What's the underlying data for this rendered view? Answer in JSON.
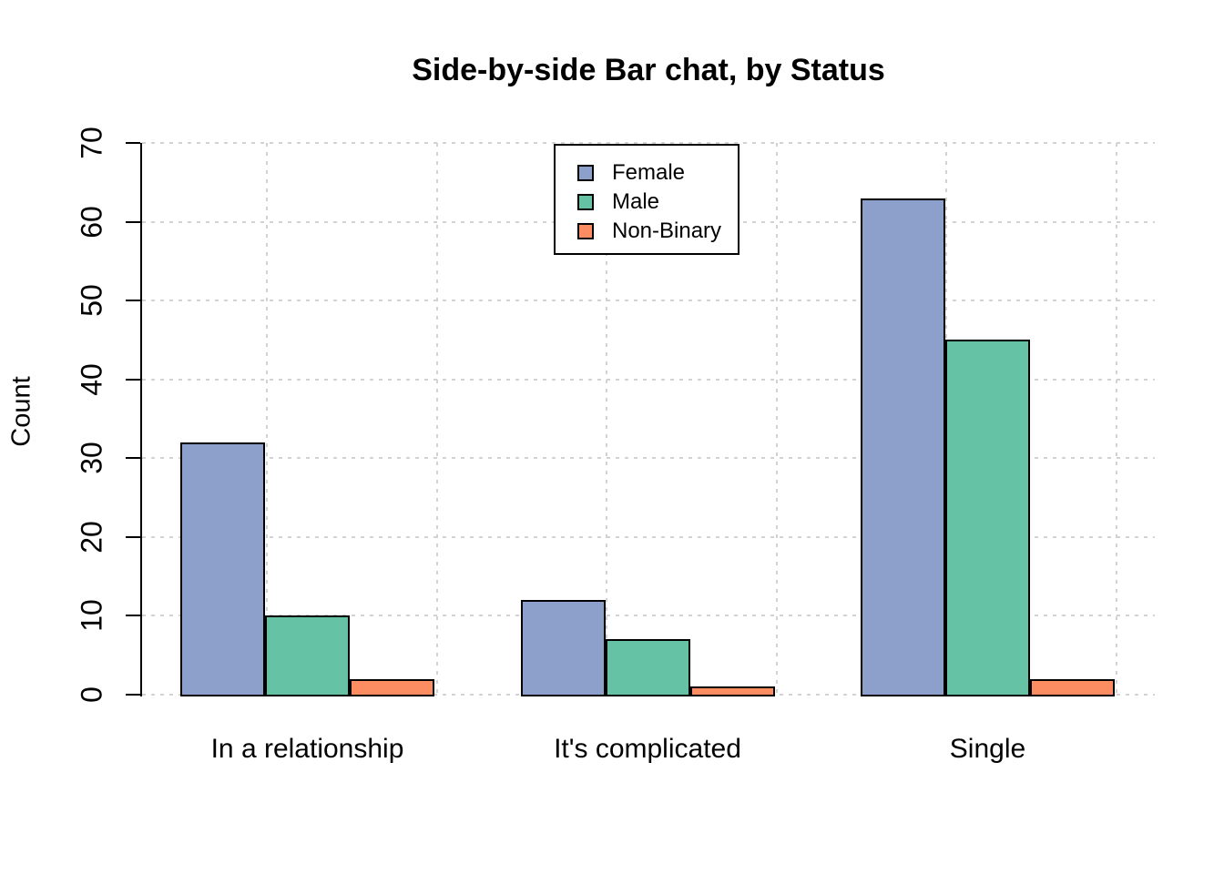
{
  "chart": {
    "title": "Side-by-side Bar chat, by Status",
    "ylabel": "Count"
  },
  "chart_data": {
    "type": "bar",
    "grouped": true,
    "title": "Side-by-side Bar chat, by Status",
    "xlabel": "",
    "ylabel": "Count",
    "ylim": [
      0,
      70
    ],
    "yticks": [
      0,
      10,
      20,
      30,
      40,
      50,
      60,
      70
    ],
    "categories": [
      "In a relationship",
      "It's complicated",
      "Single"
    ],
    "series": [
      {
        "name": "Female",
        "color": "#8DA0CB",
        "values": [
          32,
          12,
          63
        ]
      },
      {
        "name": "Male",
        "color": "#66C2A5",
        "values": [
          10,
          7,
          45
        ]
      },
      {
        "name": "Non-Binary",
        "color": "#FC8D62",
        "values": [
          2,
          1,
          2
        ]
      }
    ],
    "legend": {
      "entries": [
        "Female",
        "Male",
        "Non-Binary"
      ],
      "position": "top-center-inside",
      "border_color": "#000000",
      "background": "#ffffff"
    },
    "grid": true,
    "grid_color": "#d2d2d2",
    "grid_style": "dotted",
    "bar_border_color": "#000000",
    "axis_color": "#000000",
    "background": "#ffffff"
  }
}
